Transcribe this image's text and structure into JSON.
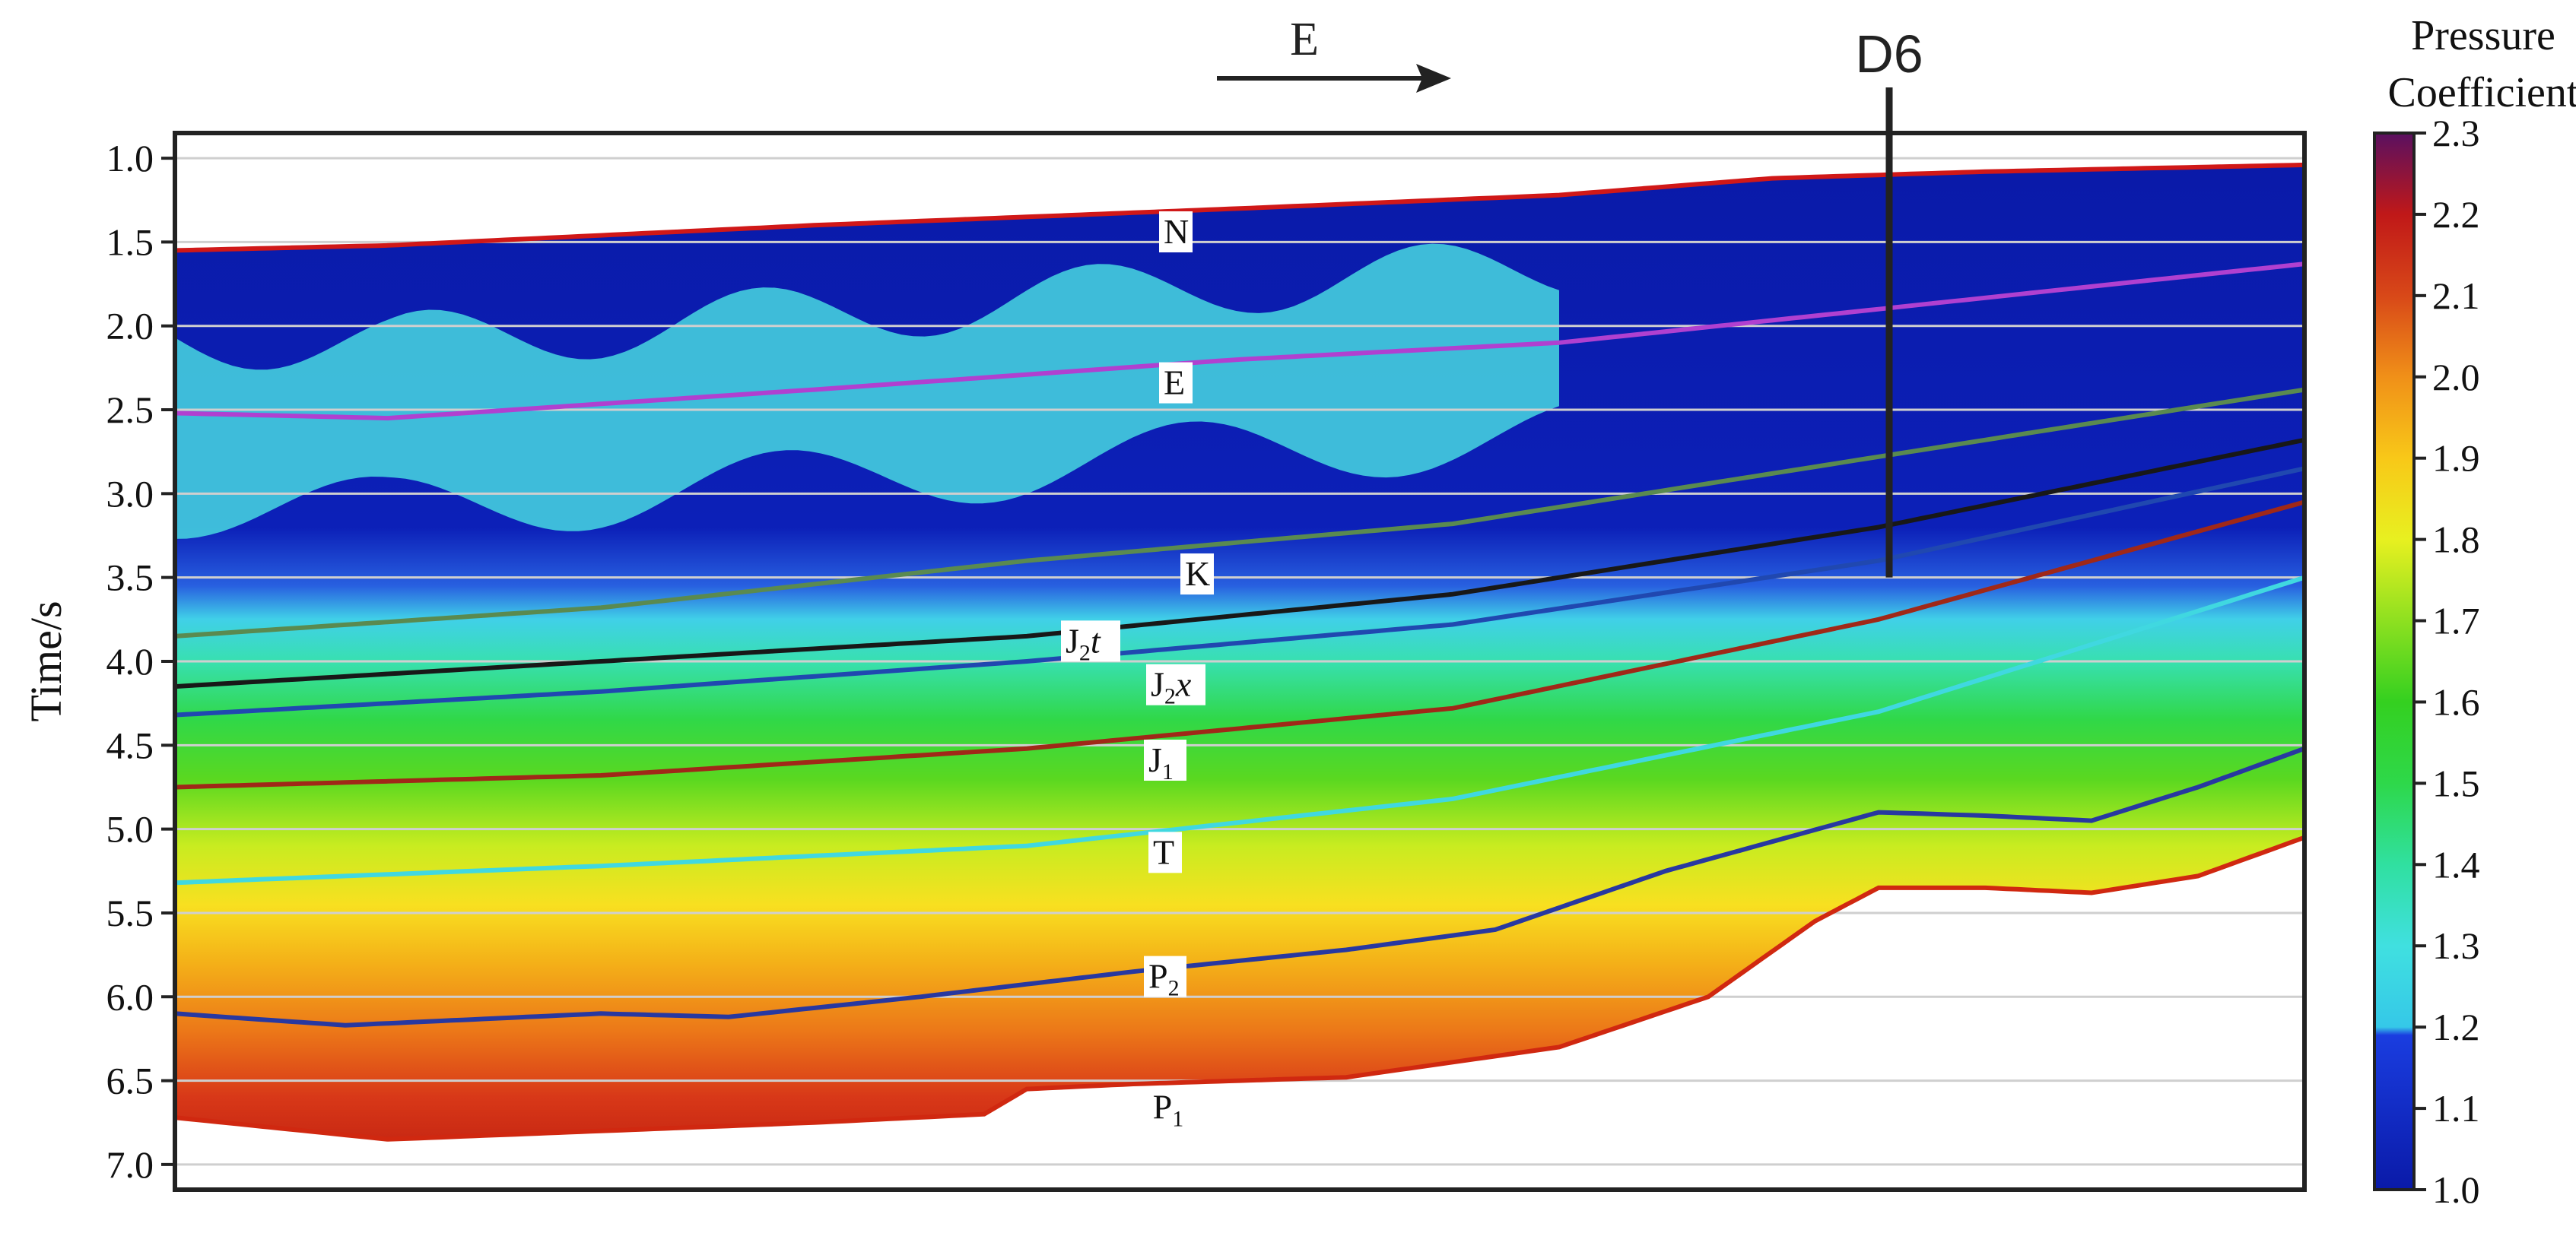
{
  "chart_data": {
    "type": "heatmap",
    "ylabel": "Time/s",
    "ylim": [
      0.85,
      7.15
    ],
    "y_ticks": [
      "1.0",
      "1.5",
      "2.0",
      "2.5",
      "3.0",
      "3.5",
      "4.0",
      "4.5",
      "5.0",
      "5.5",
      "6.0",
      "6.5",
      "7.0"
    ],
    "direction_label": "E",
    "well": {
      "label": "D6",
      "x_frac": 0.805,
      "bottom_time": 3.5
    },
    "colorbar": {
      "title_line1": "Pressure",
      "title_line2": "Coefficient",
      "range": [
        1.0,
        2.3
      ],
      "ticks": [
        "2.3",
        "2.2",
        "2.1",
        "2.0",
        "1.9",
        "1.8",
        "1.7",
        "1.6",
        "1.5",
        "1.4",
        "1.3",
        "1.2",
        "1.1",
        "1.0"
      ],
      "colors": [
        {
          "v": 1.0,
          "c": "#0a1aa8"
        },
        {
          "v": 1.19,
          "c": "#1a3de0"
        },
        {
          "v": 1.2,
          "c": "#35c8e8"
        },
        {
          "v": 1.3,
          "c": "#40e0e0"
        },
        {
          "v": 1.4,
          "c": "#30e0a0"
        },
        {
          "v": 1.5,
          "c": "#2ed84a"
        },
        {
          "v": 1.6,
          "c": "#34d020"
        },
        {
          "v": 1.7,
          "c": "#8ee020"
        },
        {
          "v": 1.8,
          "c": "#e8f020"
        },
        {
          "v": 1.9,
          "c": "#f8c818"
        },
        {
          "v": 2.0,
          "c": "#f09018"
        },
        {
          "v": 2.1,
          "c": "#d84818"
        },
        {
          "v": 2.2,
          "c": "#c01818"
        },
        {
          "v": 2.3,
          "c": "#5a1060"
        }
      ]
    },
    "horizons": [
      {
        "label": "N",
        "sub": "",
        "italic": "",
        "color": "#d01818",
        "x": [
          0,
          0.1,
          0.3,
          0.5,
          0.65,
          0.75,
          0.85,
          1.0
        ],
        "t": [
          1.55,
          1.52,
          1.4,
          1.3,
          1.22,
          1.12,
          1.08,
          1.04
        ]
      },
      {
        "label": "E",
        "sub": "",
        "italic": "",
        "color": "#b040d0",
        "x": [
          0,
          0.1,
          0.3,
          0.5,
          0.65,
          0.8,
          1.0
        ],
        "t": [
          2.52,
          2.55,
          2.38,
          2.2,
          2.1,
          1.9,
          1.63
        ]
      },
      {
        "label": "K",
        "sub": "",
        "italic": "",
        "color": "#5a8a50",
        "x": [
          0,
          0.2,
          0.4,
          0.6,
          0.8,
          1.0
        ],
        "t": [
          3.85,
          3.68,
          3.4,
          3.18,
          2.78,
          2.38
        ]
      },
      {
        "label": "J",
        "sub": "2",
        "italic": "t",
        "color": "#181818",
        "x": [
          0,
          0.2,
          0.4,
          0.6,
          0.8,
          1.0
        ],
        "t": [
          4.15,
          4.0,
          3.85,
          3.6,
          3.2,
          2.68
        ]
      },
      {
        "label": "J",
        "sub": "2",
        "italic": "x",
        "color": "#2048b0",
        "x": [
          0,
          0.2,
          0.4,
          0.6,
          0.8,
          1.0
        ],
        "t": [
          4.32,
          4.18,
          4.0,
          3.78,
          3.4,
          2.85
        ]
      },
      {
        "label": "J",
        "sub": "1",
        "italic": "",
        "color": "#a02818",
        "x": [
          0,
          0.2,
          0.4,
          0.6,
          0.8,
          1.0
        ],
        "t": [
          4.75,
          4.68,
          4.52,
          4.28,
          3.75,
          3.05
        ]
      },
      {
        "label": "T",
        "sub": "",
        "italic": "",
        "color": "#40d8e0",
        "x": [
          0,
          0.2,
          0.4,
          0.6,
          0.8,
          1.0
        ],
        "t": [
          5.32,
          5.22,
          5.1,
          4.82,
          4.3,
          3.5
        ]
      },
      {
        "label": "P",
        "sub": "2",
        "italic": "",
        "color": "#2838a0",
        "x": [
          0,
          0.08,
          0.2,
          0.26,
          0.35,
          0.45,
          0.55,
          0.62,
          0.7,
          0.8,
          0.85,
          0.9,
          0.95,
          1.0
        ],
        "t": [
          6.1,
          6.17,
          6.1,
          6.12,
          6.0,
          5.85,
          5.72,
          5.6,
          5.25,
          4.9,
          4.92,
          4.95,
          4.75,
          4.52
        ]
      },
      {
        "label": "P",
        "sub": "1",
        "italic": "",
        "color": "#d02810",
        "x": [
          0,
          0.1,
          0.2,
          0.3,
          0.38,
          0.4,
          0.45,
          0.55,
          0.65,
          0.72,
          0.77,
          0.8,
          0.85,
          0.9,
          0.95,
          1.0
        ],
        "t": [
          6.72,
          6.85,
          6.8,
          6.75,
          6.7,
          6.55,
          6.52,
          6.48,
          6.3,
          6.0,
          5.55,
          5.35,
          5.35,
          5.38,
          5.28,
          5.05
        ]
      }
    ]
  }
}
